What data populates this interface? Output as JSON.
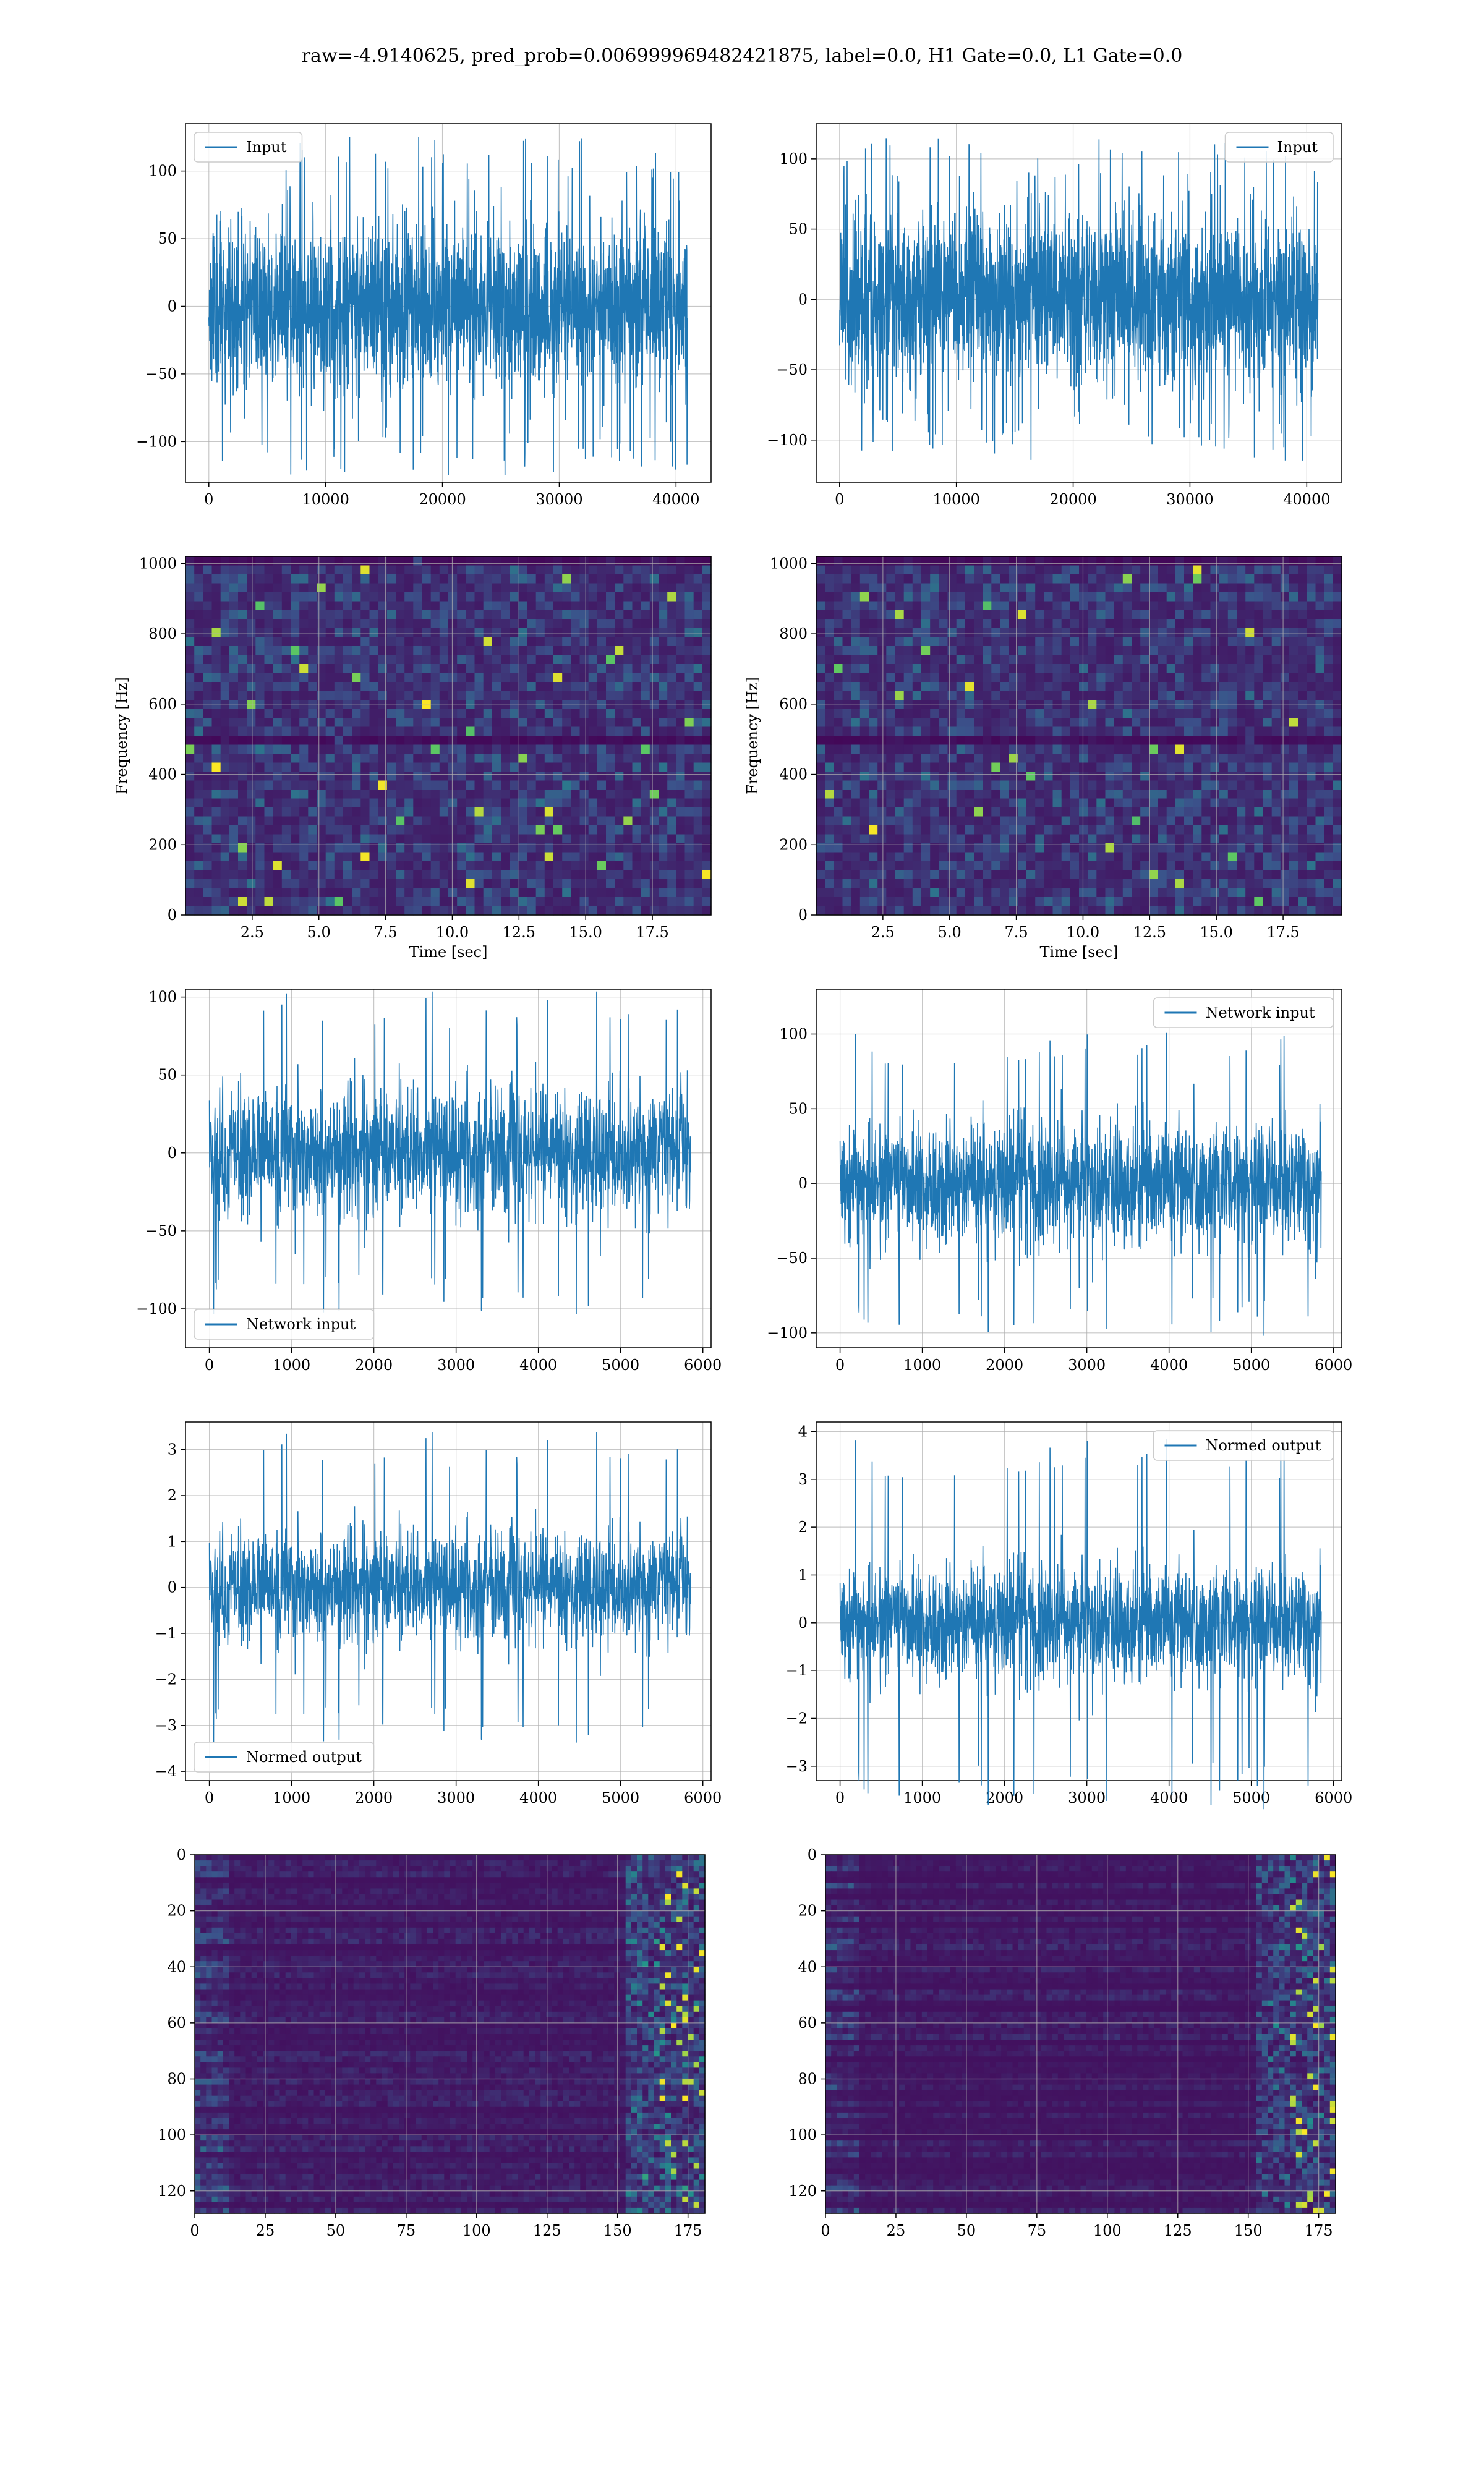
{
  "figure": {
    "suptitle": "raw=-4.9140625, pred_prob=0.006999969482421875, label=0.0, H1 Gate=0.0, L1 Gate=0.0"
  },
  "colors": {
    "series_blue": "#1f77b4",
    "grid": "#b0b0b0",
    "viridis_dark": "#440154",
    "viridis_mid": "#31688e",
    "viridis_teal": "#35b779",
    "viridis_yellow": "#fde725"
  },
  "chart_data": [
    {
      "id": "input_h1",
      "type": "line",
      "legend": "Input",
      "legend_loc": "upper left",
      "xlim": [
        -2000,
        43000
      ],
      "ylim": [
        -130,
        135
      ],
      "xticks": [
        0,
        10000,
        20000,
        30000,
        40000
      ],
      "yticks": [
        -100,
        -50,
        0,
        50,
        100
      ],
      "signal": {
        "x_start": 0,
        "x_end": 40960,
        "n": 2400,
        "band": 70,
        "extreme": 125,
        "seed": 11
      },
      "grid": true
    },
    {
      "id": "input_l1",
      "type": "line",
      "legend": "Input",
      "legend_loc": "upper right",
      "xlim": [
        -2000,
        43000
      ],
      "ylim": [
        -130,
        125
      ],
      "xticks": [
        0,
        10000,
        20000,
        30000,
        40000
      ],
      "yticks": [
        -100,
        -50,
        0,
        50,
        100
      ],
      "signal": {
        "x_start": 0,
        "x_end": 40960,
        "n": 2400,
        "band": 70,
        "extreme": 115,
        "seed": 23
      },
      "grid": true
    },
    {
      "id": "qtransform_h1",
      "type": "heatmap",
      "colormap": "viridis",
      "xlabel": "Time [sec]",
      "ylabel": "Frequency [Hz]",
      "xlim": [
        0,
        19.7
      ],
      "ylim": [
        0,
        1020
      ],
      "xticks": [
        2.5,
        5.0,
        7.5,
        10.0,
        12.5,
        15.0,
        17.5
      ],
      "yticks": [
        0,
        200,
        400,
        600,
        800,
        1000
      ],
      "dark_bands_hz": [
        500,
        1005
      ],
      "seed": 31,
      "grid": true
    },
    {
      "id": "qtransform_l1",
      "type": "heatmap",
      "colormap": "viridis",
      "xlabel": "Time [sec]",
      "ylabel": "Frequency [Hz]",
      "xlim": [
        0,
        19.7
      ],
      "ylim": [
        0,
        1020
      ],
      "xticks": [
        2.5,
        5.0,
        7.5,
        10.0,
        12.5,
        15.0,
        17.5
      ],
      "yticks": [
        0,
        200,
        400,
        600,
        800,
        1000
      ],
      "dark_bands_hz": [
        500,
        1005
      ],
      "seed": 37,
      "grid": true
    },
    {
      "id": "network_input_h1",
      "type": "line",
      "legend": "Network input",
      "legend_loc": "lower left",
      "xlim": [
        -290,
        6100
      ],
      "ylim": [
        -125,
        105
      ],
      "xticks": [
        0,
        1000,
        2000,
        3000,
        4000,
        5000,
        6000
      ],
      "yticks": [
        -100,
        -50,
        0,
        50,
        100
      ],
      "signal": {
        "x_start": 0,
        "x_end": 5850,
        "n": 1800,
        "band": 48,
        "extreme": 104,
        "seed": 41
      },
      "grid": true
    },
    {
      "id": "network_input_l1",
      "type": "line",
      "legend": "Network input",
      "legend_loc": "upper right",
      "xlim": [
        -290,
        6100
      ],
      "ylim": [
        -110,
        130
      ],
      "xticks": [
        0,
        1000,
        2000,
        3000,
        4000,
        5000,
        6000
      ],
      "yticks": [
        -100,
        -50,
        0,
        50,
        100
      ],
      "signal": {
        "x_start": 0,
        "x_end": 5850,
        "n": 1800,
        "band": 48,
        "extreme": 102,
        "seed": 53
      },
      "grid": true
    },
    {
      "id": "normed_output_h1",
      "type": "line",
      "legend": "Normed output",
      "legend_loc": "lower left",
      "xlim": [
        -290,
        6100
      ],
      "ylim": [
        -4.2,
        3.6
      ],
      "xticks": [
        0,
        1000,
        2000,
        3000,
        4000,
        5000,
        6000
      ],
      "yticks": [
        -4,
        -3,
        -2,
        -1,
        0,
        1,
        2,
        3
      ],
      "signal": {
        "x_start": 0,
        "x_end": 5850,
        "n": 1800,
        "band": 1.4,
        "extreme": 3.4,
        "seed": 41
      },
      "grid": true
    },
    {
      "id": "normed_output_l1",
      "type": "line",
      "legend": "Normed output",
      "legend_loc": "upper right",
      "xlim": [
        -290,
        6100
      ],
      "ylim": [
        -3.3,
        4.2
      ],
      "xticks": [
        0,
        1000,
        2000,
        3000,
        4000,
        5000,
        6000
      ],
      "yticks": [
        -3,
        -2,
        -1,
        0,
        1,
        2,
        3,
        4
      ],
      "signal": {
        "x_start": 0,
        "x_end": 5850,
        "n": 1800,
        "band": 1.4,
        "extreme": 3.9,
        "seed": 53
      },
      "grid": true
    },
    {
      "id": "feature_map_h1",
      "type": "heatmap",
      "colormap": "viridis",
      "xlim": [
        0,
        181
      ],
      "ylim": [
        128,
        0
      ],
      "xticks": [
        0,
        25,
        50,
        75,
        100,
        125,
        150,
        175
      ],
      "yticks": [
        0,
        20,
        40,
        60,
        80,
        100,
        120
      ],
      "seed": 61,
      "grid": true
    },
    {
      "id": "feature_map_l1",
      "type": "heatmap",
      "colormap": "viridis",
      "xlim": [
        0,
        181
      ],
      "ylim": [
        128,
        0
      ],
      "xticks": [
        0,
        25,
        50,
        75,
        100,
        125,
        150,
        175
      ],
      "yticks": [
        0,
        20,
        40,
        60,
        80,
        100,
        120
      ],
      "seed": 67,
      "grid": true
    }
  ]
}
